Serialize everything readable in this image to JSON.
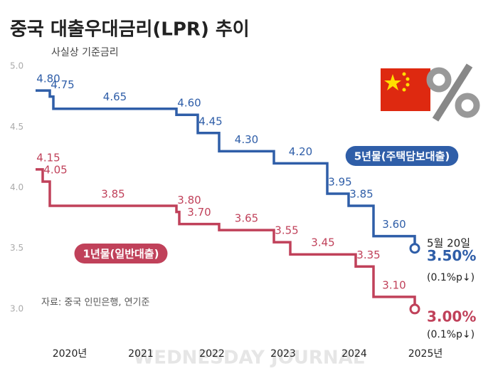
{
  "chart_data": {
    "type": "step",
    "title": "중국 대출우대금리(LPR) 추이",
    "subtitle": "사실상 기준금리",
    "source": "자료: 중국 인민은행, 연기준",
    "watermark": "WEDNESDAY JOURNAL",
    "annotations": [
      "5월 20일",
      "(0.1%p↓)",
      "(0.1%p↓)"
    ],
    "xlim": [
      2019.42,
      2025.62
    ],
    "xticks": [
      {
        "value": 2020,
        "label": "2020년"
      },
      2021,
      2022,
      2023,
      2024,
      {
        "value": 2025,
        "label": "2025년"
      }
    ],
    "ylim": [
      2.8,
      5.1
    ],
    "yticks": [
      {
        "value": 5,
        "label": "5.0"
      },
      4.5,
      {
        "value": 4,
        "label": "4.0"
      },
      3.5,
      {
        "value": 3,
        "label": "3.0"
      }
    ],
    "grid": false,
    "series": [
      {
        "name": "5년물(주택담보대출)",
        "color": "#2f5ea8",
        "x": [
          2019.52,
          2019.72,
          2019.77,
          2021.5,
          2021.8,
          2022.1,
          2022.87,
          2023.62,
          2023.92,
          2024.27,
          2024.85
        ],
        "values": [
          4.8,
          4.75,
          4.65,
          4.6,
          4.45,
          4.3,
          4.2,
          3.95,
          3.85,
          3.6,
          3.5
        ],
        "value_labels": [
          "4.80",
          "4.75",
          "4.65",
          "4.60",
          "4.45",
          "4.30",
          "4.20",
          "3.95",
          "3.85",
          "3.60",
          "3.50%"
        ]
      },
      {
        "name": "1년물(일반대출)",
        "color": "#c0415a",
        "x": [
          2019.52,
          2019.62,
          2019.72,
          2021.5,
          2021.54,
          2022.1,
          2022.87,
          2023.1,
          2024.02,
          2024.27,
          2024.85
        ],
        "values": [
          4.15,
          4.05,
          3.85,
          3.8,
          3.7,
          3.65,
          3.55,
          3.45,
          3.35,
          3.1,
          3.0
        ],
        "value_labels": [
          "4.15",
          "4.05",
          "3.85",
          "3.80",
          "3.70",
          "3.65",
          "3.55",
          "3.45",
          "3.35",
          "3.10",
          "3.00%"
        ]
      }
    ]
  }
}
